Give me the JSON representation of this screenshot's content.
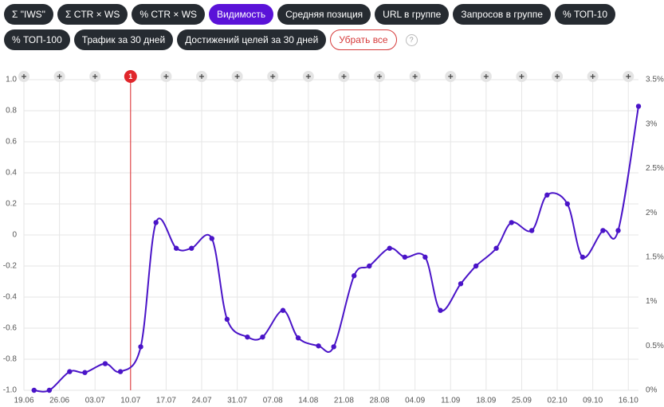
{
  "filters": [
    {
      "label": "Σ \"IWS\"",
      "active": false
    },
    {
      "label": "Σ CTR × WS",
      "active": false
    },
    {
      "label": "% CTR × WS",
      "active": false
    },
    {
      "label": "Видимость",
      "active": true
    },
    {
      "label": "Средняя позиция",
      "active": false
    },
    {
      "label": "URL в группе",
      "active": false
    },
    {
      "label": "Запросов в группе",
      "active": false
    },
    {
      "label": "% ТОП-10",
      "active": false
    },
    {
      "label": "% ТОП-100",
      "active": false
    },
    {
      "label": "Трафик за 30 дней",
      "active": false
    },
    {
      "label": "Достижений целей за 30 дней",
      "active": false
    }
  ],
  "clear_label": "Убрать все",
  "help_label": "?",
  "chart_data": {
    "type": "line",
    "x": [
      "21.06",
      "24.06",
      "28.06",
      "01.07",
      "05.07",
      "08.07",
      "12.07",
      "15.07",
      "19.07",
      "22.07",
      "26.07",
      "29.07",
      "02.08",
      "05.08",
      "09.08",
      "12.08",
      "16.08",
      "19.08",
      "23.08",
      "26.08",
      "30.08",
      "02.09",
      "06.09",
      "09.09",
      "13.09",
      "16.09",
      "20.09",
      "23.09",
      "27.09",
      "30.09",
      "04.10",
      "07.10",
      "11.10",
      "14.10",
      "18.10"
    ],
    "series": [
      {
        "name": "Видимость",
        "color": "#4a14c8",
        "axis": "y2",
        "values": [
          0,
          0,
          0.21,
          0.2,
          0.3,
          0.21,
          0.49,
          1.89,
          1.6,
          1.6,
          1.71,
          0.8,
          0.6,
          0.6,
          0.9,
          0.59,
          0.5,
          0.49,
          1.29,
          1.4,
          1.6,
          1.5,
          1.5,
          0.9,
          1.2,
          1.4,
          1.6,
          1.89,
          1.8,
          2.2,
          2.1,
          1.5,
          1.8,
          1.8,
          3.2
        ]
      }
    ],
    "xlim": [
      "19.06",
      "18.10"
    ],
    "xticks": [
      "19.06",
      "26.06",
      "03.07",
      "10.07",
      "17.07",
      "24.07",
      "31.07",
      "07.08",
      "14.08",
      "21.08",
      "28.08",
      "04.09",
      "11.09",
      "18.09",
      "25.09",
      "02.10",
      "09.10",
      "16.10"
    ],
    "ylim": [
      -1,
      1
    ],
    "yticks": [
      {
        "value": -1,
        "label": "-1.0"
      },
      -0.8,
      -0.6,
      -0.4,
      -0.2,
      0,
      0.2,
      0.4,
      0.6,
      0.8,
      {
        "value": 1,
        "label": "1.0"
      }
    ],
    "y2lim": [
      0,
      3.5
    ],
    "y2ticks": [
      {
        "value": 0,
        "label": "0%"
      },
      {
        "value": 0.5,
        "label": "0.5%"
      },
      {
        "value": 1,
        "label": "1%"
      },
      {
        "value": 1.5,
        "label": "1.5%"
      },
      {
        "value": 2,
        "label": "2%"
      },
      {
        "value": 2.5,
        "label": "2.5%"
      },
      {
        "value": 3,
        "label": "3%"
      },
      {
        "value": 3.5,
        "label": "3.5%"
      }
    ],
    "grid": true,
    "annotations": [
      {
        "x": "10.07",
        "label": "1",
        "color": "#e0262b"
      }
    ]
  }
}
